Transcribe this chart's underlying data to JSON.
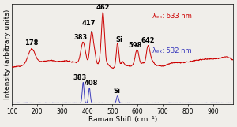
{
  "xlabel": "Raman Shift (cm⁻¹)",
  "ylabel": "Intensity (arbitrary units)",
  "xlim": [
    100,
    980
  ],
  "red_label": "λₑₓ: 633 nm",
  "blue_label": "λₑₓ: 532 nm",
  "red_color": "#cc0000",
  "blue_color": "#3333bb",
  "background_color": "#f0eeea",
  "xticks": [
    100,
    200,
    300,
    400,
    500,
    600,
    700,
    800,
    900
  ],
  "font_size_labels": 6.5,
  "font_size_ticks": 5.5,
  "font_size_peak_labels": 6,
  "font_size_legend": 6
}
